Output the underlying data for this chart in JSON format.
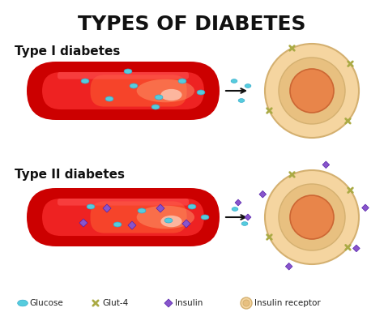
{
  "title": "TYPES OF DIABETES",
  "title_fontsize": 18,
  "title_fontweight": "bold",
  "title_color": "#111111",
  "label1": "Type I diabetes",
  "label2": "Type II diabetes",
  "label_fontsize": 11,
  "label_fontweight": "bold",
  "bg_color": "#ffffff",
  "vessel_dark_red": "#cc0000",
  "vessel_mid_red": "#dd1111",
  "glucose_color": "#55ccdd",
  "insulin_color": "#8855cc",
  "cell_outer_color": "#f5d5a0",
  "cell_inner_color": "#e8854a",
  "cell_ring_color": "#e8c080",
  "glut4_color": "#aaaa44",
  "arrow_color": "#111111",
  "legend_glucose": "Glucose",
  "legend_glut4": "Glut-4",
  "legend_insulin": "Insulin",
  "legend_receptor": "Insulin receptor"
}
